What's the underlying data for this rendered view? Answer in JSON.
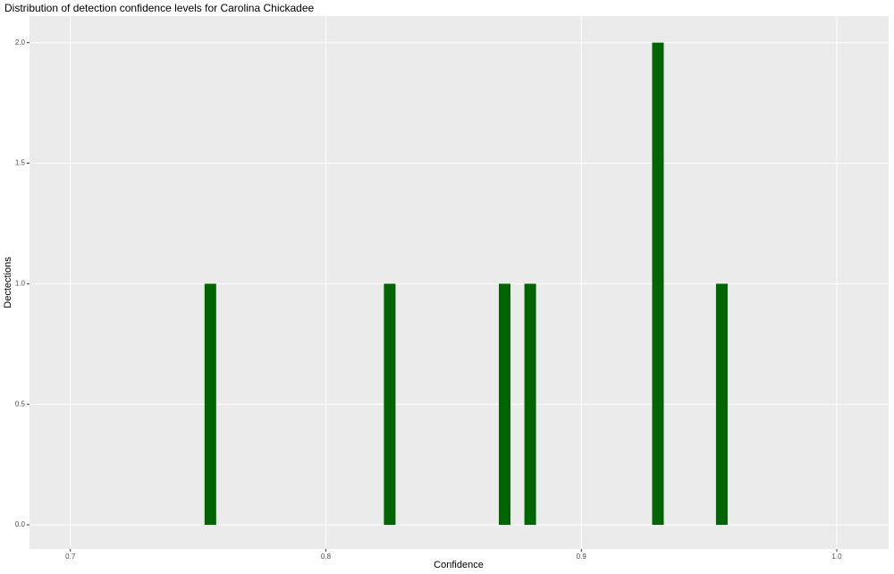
{
  "chart_data": {
    "type": "bar",
    "title": "Distribution of detection confidence levels for Carolina Chickadee",
    "x_label": "Confidence",
    "y_label": "Dectections",
    "x": [
      0.7548,
      0.825,
      0.87,
      0.88,
      0.93,
      0.955
    ],
    "values": [
      1,
      1,
      1,
      1,
      2,
      1
    ],
    "color": "#006400",
    "xlim": [
      0.684,
      1.0203
    ],
    "xticks": [
      0.7,
      0.8,
      0.9,
      {
        "value": 1.0,
        "label": "1.0"
      }
    ],
    "ylim": [
      -0.1,
      2.11
    ],
    "yticks": [
      {
        "value": 0,
        "label": "0.0"
      },
      {
        "value": 0.5,
        "label": "0.5"
      },
      {
        "value": 1,
        "label": "1.0"
      },
      {
        "value": 1.5,
        "label": "1.5"
      },
      {
        "value": 2,
        "label": "2.0"
      }
    ],
    "grid": true
  }
}
